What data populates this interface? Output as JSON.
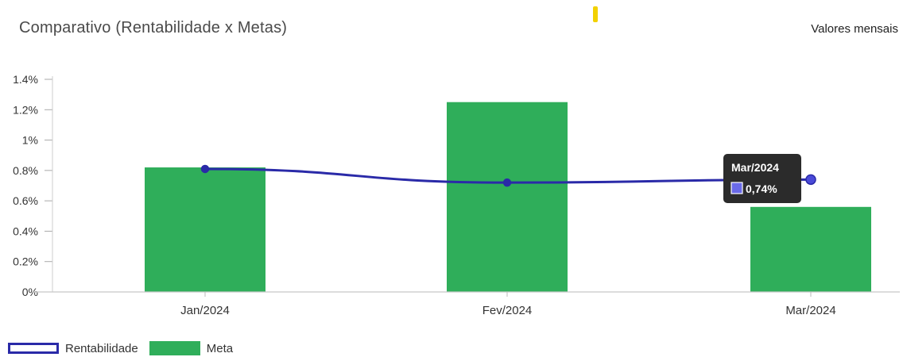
{
  "header": {
    "title": "Comparativo (Rentabilidade x Metas)",
    "subtitle": "Valores mensais"
  },
  "colors": {
    "bar": "#2fae5a",
    "line": "#2a2aa8",
    "tooltip_bg": "#2b2b2b"
  },
  "chart_data": {
    "type": "bar",
    "categories": [
      "Jan/2024",
      "Fev/2024",
      "Mar/2024"
    ],
    "y_tick_labels": [
      "0%",
      "0.2%",
      "0.4%",
      "0.6%",
      "0.8%",
      "1%",
      "1.2%",
      "1.4%"
    ],
    "ylim": [
      0,
      1.4
    ],
    "series": [
      {
        "name": "Meta",
        "kind": "bar",
        "values": [
          0.82,
          1.25,
          0.56
        ]
      },
      {
        "name": "Rentabilidade",
        "kind": "line",
        "values": [
          0.81,
          0.72,
          0.74
        ]
      }
    ],
    "legend_position": "bottom-left",
    "tooltip": {
      "category": "Mar/2024",
      "value_text": "0,74%"
    },
    "grid": false
  }
}
